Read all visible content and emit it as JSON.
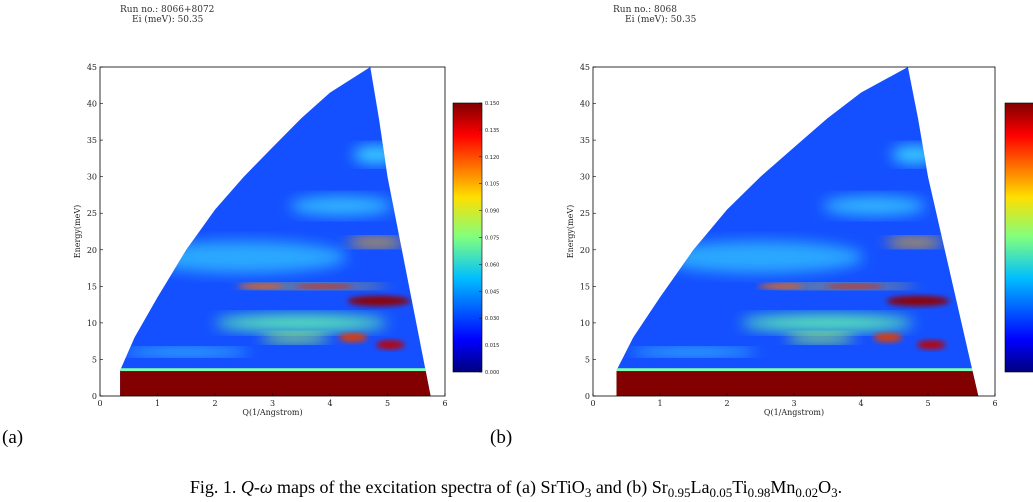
{
  "chart_data": [
    {
      "type": "heatmap",
      "panel_label": "(a)",
      "header": [
        "Run no.: 8066+8072",
        "Ei (meV): 50.35"
      ],
      "xlabel": "Q(1/Angstrom)",
      "ylabel": "Energy(meV)",
      "xlim": [
        0,
        6
      ],
      "xticks": [
        0,
        1,
        2,
        3,
        4,
        5,
        6
      ],
      "ylim": [
        0,
        45
      ],
      "yticks": [
        0,
        5,
        10,
        15,
        20,
        25,
        30,
        35,
        40,
        45
      ],
      "colorbar_lim": [
        0,
        0.15
      ],
      "colorbar_ticks": [
        {
          "value": 0,
          "label": "0.000"
        },
        {
          "value": 0.015,
          "label": "0.015"
        },
        {
          "value": 0.03,
          "label": "0.030"
        },
        {
          "value": 0.045,
          "label": "0.045"
        },
        {
          "value": 0.06,
          "label": "0.060"
        },
        {
          "value": 0.075,
          "label": "0.075"
        },
        {
          "value": 0.09,
          "label": "0.090"
        },
        {
          "value": 0.105,
          "label": "0.105"
        },
        {
          "value": 0.12,
          "label": "0.120"
        },
        {
          "value": 0.135,
          "label": "0.135"
        },
        {
          "value": 0.15,
          "label": "0.150"
        }
      ]
    },
    {
      "type": "heatmap",
      "panel_label": "(b)",
      "header": [
        "Run no.: 8068",
        "Ei (meV): 50.35"
      ],
      "xlabel": "Q(1/Angstrom)",
      "ylabel": "Energy(meV)",
      "xlim": [
        0,
        6
      ],
      "xticks": [
        0,
        1,
        2,
        3,
        4,
        5,
        6
      ],
      "ylim": [
        0,
        45
      ],
      "yticks": [
        0,
        5,
        10,
        15,
        20,
        25,
        30,
        35,
        40,
        45
      ]
    }
  ],
  "caption": [
    "Fig. 1. ",
    "Q",
    "-",
    "ω",
    " maps of the excitation spectra of (a) SrTiO",
    "3",
    " and (b) Sr",
    "0.95",
    "La",
    "0.05",
    "Ti",
    "0.98",
    "Mn",
    "0.02",
    "O",
    "3",
    "."
  ]
}
